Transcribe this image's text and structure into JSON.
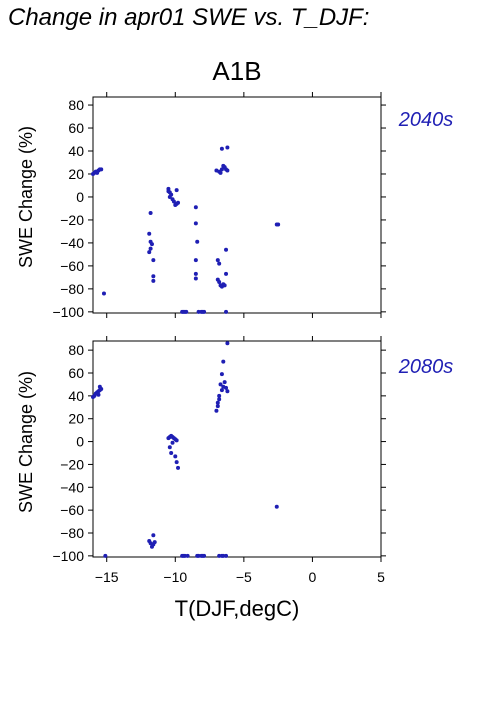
{
  "title": "Change in apr01 SWE vs. T_DJF:",
  "colors": {
    "points": "#1f1fb4",
    "period_label": "#1f1fb4",
    "axes": "#000000"
  },
  "chart_data": [
    {
      "type": "scatter",
      "scenario_title": "A1B",
      "period_label": "2040s",
      "ylabel": "SWE Change (%)",
      "xlabel": "",
      "xlim": [
        -16,
        5
      ],
      "ylim": [
        -101,
        87
      ],
      "yticks": [
        80,
        60,
        40,
        20,
        0,
        -20,
        -40,
        -60,
        -80,
        -100
      ],
      "ytick_labels": [
        "80",
        "60",
        "40",
        "20",
        "0",
        "−20",
        "−40",
        "−60",
        "−80",
        "−100"
      ],
      "xticks": [
        -15,
        -10,
        -5,
        0,
        5
      ],
      "xtick_labels": [],
      "points": [
        [
          -16.0,
          20
        ],
        [
          -15.9,
          21
        ],
        [
          -15.8,
          22
        ],
        [
          -15.7,
          21
        ],
        [
          -15.6,
          23
        ],
        [
          -15.5,
          24
        ],
        [
          -15.4,
          24
        ],
        [
          -15.2,
          -84
        ],
        [
          -11.8,
          -14
        ],
        [
          -11.9,
          -32
        ],
        [
          -11.8,
          -39
        ],
        [
          -11.7,
          -41
        ],
        [
          -11.8,
          -45
        ],
        [
          -11.9,
          -48
        ],
        [
          -11.6,
          -55
        ],
        [
          -11.6,
          -69
        ],
        [
          -11.6,
          -73
        ],
        [
          -10.5,
          7
        ],
        [
          -10.5,
          5
        ],
        [
          -10.4,
          4
        ],
        [
          -10.3,
          2
        ],
        [
          -10.4,
          0
        ],
        [
          -10.2,
          -2
        ],
        [
          -10.1,
          -4
        ],
        [
          -9.9,
          -6
        ],
        [
          -10.0,
          -7
        ],
        [
          -9.8,
          -5
        ],
        [
          -9.9,
          6
        ],
        [
          -9.5,
          -100
        ],
        [
          -9.4,
          -100
        ],
        [
          -9.3,
          -100
        ],
        [
          -9.2,
          -100
        ],
        [
          -8.5,
          -9
        ],
        [
          -8.5,
          -23
        ],
        [
          -8.4,
          -39
        ],
        [
          -8.5,
          -55
        ],
        [
          -8.5,
          -67
        ],
        [
          -8.5,
          -71
        ],
        [
          -8.3,
          -100
        ],
        [
          -8.1,
          -100
        ],
        [
          -8.0,
          -100
        ],
        [
          -7.9,
          -100
        ],
        [
          -7.0,
          23
        ],
        [
          -6.8,
          22
        ],
        [
          -6.7,
          21
        ],
        [
          -6.6,
          24
        ],
        [
          -6.5,
          27
        ],
        [
          -6.4,
          26
        ],
        [
          -6.3,
          24
        ],
        [
          -6.2,
          23
        ],
        [
          -6.6,
          42
        ],
        [
          -6.2,
          43
        ],
        [
          -6.9,
          -55
        ],
        [
          -6.8,
          -58
        ],
        [
          -6.9,
          -72
        ],
        [
          -6.8,
          -74
        ],
        [
          -6.7,
          -77
        ],
        [
          -6.6,
          -78
        ],
        [
          -6.5,
          -76
        ],
        [
          -6.4,
          -77
        ],
        [
          -6.3,
          -67
        ],
        [
          -6.3,
          -46
        ],
        [
          -6.3,
          -100
        ],
        [
          -2.6,
          -24
        ],
        [
          -2.5,
          -24
        ]
      ]
    },
    {
      "type": "scatter",
      "scenario_title": "",
      "period_label": "2080s",
      "ylabel": "SWE Change (%)",
      "xlabel": "T(DJF,degC)",
      "xlim": [
        -16,
        5
      ],
      "ylim": [
        -101,
        88
      ],
      "yticks": [
        80,
        60,
        40,
        20,
        0,
        -20,
        -40,
        -60,
        -80,
        -100
      ],
      "ytick_labels": [
        "80",
        "60",
        "40",
        "20",
        "0",
        "−20",
        "−40",
        "−60",
        "−80",
        "−100"
      ],
      "xticks": [
        -15,
        -10,
        -5,
        0,
        5
      ],
      "xtick_labels": [
        "−15",
        "−10",
        "−5",
        "0",
        "5"
      ],
      "points": [
        [
          -16.0,
          39
        ],
        [
          -15.9,
          40
        ],
        [
          -15.8,
          42
        ],
        [
          -15.7,
          43
        ],
        [
          -15.6,
          44
        ],
        [
          -15.5,
          45
        ],
        [
          -15.4,
          46
        ],
        [
          -15.5,
          48
        ],
        [
          -15.6,
          41
        ],
        [
          -15.1,
          -100
        ],
        [
          -11.9,
          -87
        ],
        [
          -11.8,
          -89
        ],
        [
          -11.7,
          -92
        ],
        [
          -11.6,
          -90
        ],
        [
          -11.5,
          -88
        ],
        [
          -11.6,
          -82
        ],
        [
          -10.5,
          3
        ],
        [
          -10.4,
          4
        ],
        [
          -10.3,
          5
        ],
        [
          -10.2,
          4
        ],
        [
          -10.1,
          3
        ],
        [
          -10.0,
          2
        ],
        [
          -9.9,
          1
        ],
        [
          -10.4,
          -5
        ],
        [
          -10.3,
          -10
        ],
        [
          -10.0,
          -13
        ],
        [
          -9.9,
          -18
        ],
        [
          -9.8,
          -23
        ],
        [
          -10.2,
          -1
        ],
        [
          -9.5,
          -100
        ],
        [
          -9.4,
          -100
        ],
        [
          -9.3,
          -100
        ],
        [
          -9.1,
          -100
        ],
        [
          -8.4,
          -100
        ],
        [
          -8.3,
          -100
        ],
        [
          -8.1,
          -100
        ],
        [
          -8.0,
          -100
        ],
        [
          -7.9,
          -100
        ],
        [
          -7.0,
          27
        ],
        [
          -6.9,
          31
        ],
        [
          -6.9,
          34
        ],
        [
          -6.8,
          37
        ],
        [
          -6.8,
          40
        ],
        [
          -6.6,
          45
        ],
        [
          -6.5,
          48
        ],
        [
          -6.4,
          52
        ],
        [
          -6.3,
          47
        ],
        [
          -6.2,
          44
        ],
        [
          -6.6,
          59
        ],
        [
          -6.5,
          70
        ],
        [
          -6.2,
          86
        ],
        [
          -6.7,
          50
        ],
        [
          -6.8,
          -100
        ],
        [
          -6.6,
          -100
        ],
        [
          -6.5,
          -100
        ],
        [
          -6.3,
          -100
        ],
        [
          -2.6,
          -57
        ]
      ]
    }
  ]
}
